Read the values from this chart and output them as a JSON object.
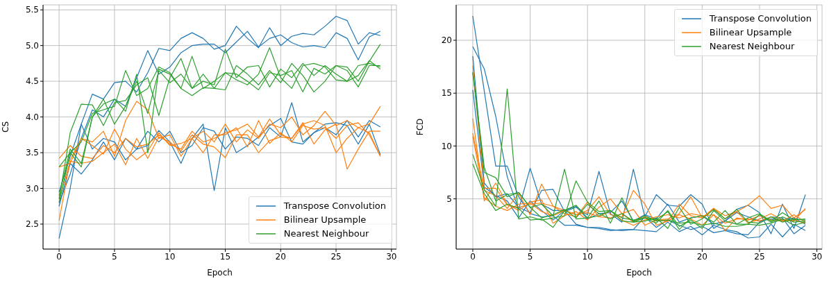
{
  "chart_data": [
    {
      "type": "line",
      "xlabel": "Epoch",
      "ylabel": "CS",
      "x": [
        0,
        1,
        2,
        3,
        4,
        5,
        6,
        7,
        8,
        9,
        10,
        11,
        12,
        13,
        14,
        15,
        16,
        17,
        18,
        19,
        20,
        21,
        22,
        23,
        24,
        25,
        26,
        27,
        28,
        29
      ],
      "xlim": [
        -1.45,
        30.45
      ],
      "xticks": [
        0,
        5,
        10,
        15,
        20,
        25,
        30
      ],
      "ylim": [
        2.15,
        5.57
      ],
      "yticks": [
        2.5,
        {
          "value": 3,
          "label": "3.0"
        },
        3.5,
        {
          "value": 4,
          "label": "4.0"
        },
        4.5,
        {
          "value": 5,
          "label": "5.0"
        },
        5.5
      ],
      "grid": true,
      "legend": "bottom right",
      "series": [
        {
          "name": "Transpose Convolution",
          "color": "#1f77b4",
          "values": [
            2.3,
            3.0,
            3.9,
            4.32,
            4.25,
            4.48,
            4.5,
            4.35,
            4.62,
            4.96,
            4.93,
            5.1,
            5.18,
            5.1,
            4.95,
            5.0,
            5.27,
            5.1,
            4.97,
            5.25,
            5.0,
            5.13,
            5.17,
            5.15,
            5.27,
            5.41,
            5.35,
            5.02,
            5.18,
            5.14
          ]
        },
        {
          "color": "#1f77b4",
          "values": [
            2.8,
            3.2,
            3.7,
            4.1,
            4.0,
            4.25,
            4.15,
            4.55,
            4.93,
            4.6,
            4.7,
            4.9,
            5.0,
            5.02,
            5.02,
            4.9,
            5.05,
            5.2,
            4.98,
            5.1,
            5.15,
            5.04,
            4.98,
            5.0,
            4.97,
            5.18,
            5.1,
            4.8,
            5.12,
            5.2
          ]
        },
        {
          "color": "#1f77b4",
          "values": [
            2.95,
            3.45,
            3.9,
            3.55,
            3.7,
            3.65,
            3.4,
            3.55,
            3.6,
            3.81,
            3.65,
            3.35,
            3.7,
            3.9,
            2.97,
            3.85,
            3.5,
            3.6,
            3.72,
            3.88,
            3.98,
            3.65,
            3.62,
            3.78,
            3.85,
            3.75,
            3.95,
            3.72,
            3.95,
            3.86
          ]
        },
        {
          "color": "#1f77b4",
          "values": [
            2.75,
            3.35,
            3.2,
            3.4,
            3.65,
            3.4,
            3.7,
            3.55,
            3.8,
            3.65,
            3.8,
            3.5,
            3.6,
            3.85,
            3.8,
            3.55,
            3.72,
            3.7,
            3.6,
            3.85,
            3.72,
            4.2,
            3.65,
            3.78,
            3.9,
            3.92,
            3.88,
            3.62,
            3.9,
            3.47
          ]
        },
        {
          "name": "Bilinear Upsample",
          "color": "#ff7f0e",
          "values": [
            2.55,
            3.4,
            3.7,
            3.65,
            3.8,
            3.45,
            3.95,
            4.22,
            4.1,
            3.7,
            3.75,
            3.45,
            3.7,
            3.8,
            3.65,
            3.9,
            3.65,
            3.82,
            3.7,
            3.9,
            3.85,
            4.0,
            3.75,
            3.88,
            4.08,
            3.88,
            3.95,
            3.85,
            3.9,
            4.15
          ]
        },
        {
          "color": "#ff7f0e",
          "values": [
            3.42,
            3.6,
            3.45,
            3.42,
            3.6,
            3.5,
            3.7,
            3.58,
            3.62,
            3.75,
            3.62,
            3.55,
            3.8,
            3.65,
            3.7,
            3.78,
            3.82,
            3.9,
            3.72,
            3.97,
            3.75,
            3.7,
            3.9,
            3.95,
            3.88,
            3.5,
            3.7,
            3.85,
            3.78,
            3.45
          ]
        },
        {
          "color": "#ff7f0e",
          "values": [
            2.85,
            3.38,
            3.35,
            3.38,
            3.5,
            3.62,
            3.33,
            3.7,
            3.42,
            3.72,
            3.65,
            3.52,
            3.75,
            3.62,
            3.58,
            3.43,
            3.75,
            3.75,
            3.5,
            3.67,
            3.72,
            3.7,
            3.92,
            3.62,
            3.82,
            3.9,
            3.27,
            3.55,
            3.8,
            3.8
          ]
        },
        {
          "color": "#ff7f0e",
          "values": [
            3.3,
            3.35,
            3.7,
            3.6,
            3.48,
            3.83,
            3.55,
            3.4,
            3.52,
            3.78,
            3.6,
            3.63,
            3.7,
            3.5,
            3.75,
            3.75,
            3.85,
            3.58,
            3.95,
            3.63,
            3.78,
            3.65,
            3.88,
            3.83,
            3.85,
            3.7,
            3.88,
            3.92,
            3.75,
            3.45
          ]
        },
        {
          "name": "Nearest Neighbour",
          "color": "#2ca02c",
          "values": [
            2.85,
            3.78,
            4.18,
            4.17,
            3.88,
            4.2,
            4.23,
            4.45,
            4.55,
            4.02,
            4.55,
            4.82,
            4.4,
            4.5,
            4.45,
            4.95,
            4.55,
            4.7,
            4.72,
            4.42,
            4.67,
            4.55,
            4.75,
            4.58,
            4.72,
            4.6,
            4.5,
            4.72,
            4.75,
            4.7
          ]
        },
        {
          "color": "#2ca02c",
          "values": [
            3.3,
            3.5,
            3.65,
            4.05,
            4.1,
            4.15,
            4.65,
            4.3,
            4.4,
            4.7,
            4.62,
            4.4,
            4.85,
            4.4,
            4.5,
            4.62,
            4.6,
            4.5,
            4.38,
            4.62,
            4.58,
            4.65,
            4.35,
            4.68,
            4.6,
            4.72,
            4.7,
            4.5,
            4.78,
            5.02
          ]
        },
        {
          "color": "#2ca02c",
          "values": [
            2.9,
            3.55,
            3.35,
            4.0,
            4.25,
            3.9,
            4.15,
            4.5,
            4.05,
            4.65,
            4.48,
            4.6,
            4.4,
            4.6,
            4.4,
            4.62,
            4.52,
            4.45,
            4.6,
            4.97,
            4.55,
            4.4,
            4.72,
            4.75,
            4.7,
            4.52,
            4.5,
            4.58,
            4.79,
            4.67
          ]
        },
        {
          "color": "#2ca02c",
          "values": [
            2.8,
            3.5,
            3.3,
            4.0,
            4.18,
            4.25,
            4.08,
            4.6,
            3.5,
            4.67,
            4.6,
            4.4,
            4.3,
            4.41,
            4.4,
            4.38,
            4.72,
            4.6,
            4.45,
            4.65,
            4.48,
            4.75,
            4.58,
            4.35,
            4.5,
            4.72,
            4.65,
            4.42,
            4.72,
            4.72
          ]
        }
      ]
    },
    {
      "type": "line",
      "xlabel": "Epoch",
      "ylabel": "FCD",
      "x": [
        0,
        1,
        2,
        3,
        4,
        5,
        6,
        7,
        8,
        9,
        10,
        11,
        12,
        13,
        14,
        15,
        16,
        17,
        18,
        19,
        20,
        21,
        22,
        23,
        24,
        25,
        26,
        27,
        28,
        29
      ],
      "xlim": [
        -1.45,
        30.45
      ],
      "xticks": [
        0,
        5,
        10,
        15,
        20,
        25,
        30
      ],
      "ylim": [
        0.25,
        23.35
      ],
      "yticks": [
        5,
        10,
        15,
        20
      ],
      "grid": true,
      "legend": "top right",
      "series": [
        {
          "name": "Transpose Convolution",
          "color": "#1f77b4",
          "values": [
            22.3,
            15.2,
            8.1,
            8.1,
            5.2,
            3.6,
            3.3,
            3.4,
            2.5,
            2.5,
            2.3,
            2.2,
            2.0,
            2.1,
            2.1,
            2.0,
            1.9,
            2.8,
            1.9,
            2.4,
            1.6,
            2.5,
            2.1,
            1.9,
            1.3,
            1.4,
            2.6,
            1.4,
            2.6,
            2.0
          ]
        },
        {
          "color": "#1f77b4",
          "values": [
            19.4,
            17.3,
            12.8,
            7.1,
            4.0,
            7.9,
            4.5,
            3.9,
            3.9,
            2.6,
            2.3,
            2.3,
            2.1,
            2.0,
            2.1,
            3.3,
            2.3,
            3.0,
            2.5,
            2.1,
            2.4,
            1.8,
            2.0,
            1.7,
            1.6,
            2.8,
            3.3,
            3.2,
            1.7,
            2.5
          ]
        },
        {
          "color": "#1f77b4",
          "values": [
            18.5,
            6.5,
            5.2,
            5.5,
            4.2,
            3.7,
            5.8,
            5.9,
            3.8,
            4.2,
            3.5,
            7.6,
            3.6,
            2.8,
            7.8,
            3.3,
            5.4,
            4.4,
            4.3,
            5.4,
            4.5,
            2.2,
            2.9,
            4.0,
            4.4,
            3.7,
            1.7,
            4.5,
            2.2,
            5.4
          ]
        },
        {
          "color": "#1f77b4",
          "values": [
            15.3,
            6.1,
            5.3,
            4.8,
            3.2,
            4.8,
            3.9,
            3.0,
            3.9,
            4.3,
            3.1,
            3.6,
            3.7,
            4.8,
            2.9,
            3.5,
            3.1,
            4.5,
            2.8,
            3.2,
            3.4,
            2.6,
            2.9,
            3.7,
            3.3,
            2.9,
            3.1,
            3.0,
            3.2,
            2.6
          ]
        },
        {
          "name": "Bilinear Upsample",
          "color": "#ff7f0e",
          "values": [
            17.6,
            6.0,
            6.0,
            4.4,
            4.2,
            4.5,
            4.6,
            4.3,
            3.9,
            3.5,
            3.9,
            5.2,
            3.5,
            3.3,
            5.8,
            4.5,
            2.5,
            2.9,
            4.5,
            3.4,
            3.2,
            4.1,
            3.4,
            3.8,
            4.4,
            5.3,
            4.1,
            4.4,
            3.2,
            4.0
          ]
        },
        {
          "color": "#ff7f0e",
          "values": [
            12.6,
            4.8,
            6.5,
            4.5,
            3.9,
            4.7,
            4.9,
            2.7,
            3.4,
            3.8,
            3.0,
            4.2,
            5.0,
            3.6,
            4.0,
            2.5,
            3.0,
            3.1,
            3.6,
            5.2,
            3.2,
            4.1,
            3.1,
            3.8,
            2.7,
            3.1,
            3.6,
            3.0,
            2.9,
            4.1
          ]
        },
        {
          "color": "#ff7f0e",
          "values": [
            11.2,
            5.8,
            5.3,
            4.1,
            5.5,
            3.5,
            6.4,
            4.3,
            3.6,
            3.3,
            4.7,
            3.3,
            3.9,
            3.0,
            2.5,
            3.0,
            3.3,
            3.5,
            3.2,
            3.6,
            3.4,
            3.5,
            2.0,
            3.2,
            3.0,
            3.4,
            3.0,
            2.9,
            3.5,
            2.8
          ]
        },
        {
          "color": "#ff7f0e",
          "values": [
            10.9,
            5.1,
            4.3,
            3.9,
            4.5,
            4.6,
            3.8,
            3.4,
            3.9,
            3.5,
            3.7,
            3.3,
            3.2,
            3.6,
            2.8,
            3.3,
            3.0,
            2.9,
            3.5,
            3.1,
            2.5,
            3.5,
            2.7,
            3.1,
            3.1,
            2.9,
            3.3,
            2.9,
            3.0,
            2.7
          ]
        },
        {
          "name": "Nearest Neighbour",
          "color": "#2ca02c",
          "values": [
            16.9,
            7.5,
            7.0,
            5.2,
            5.6,
            4.2,
            4.5,
            3.4,
            7.8,
            3.1,
            3.2,
            4.8,
            2.7,
            5.1,
            2.8,
            3.2,
            3.0,
            3.8,
            2.1,
            3.2,
            3.4,
            2.8,
            3.9,
            2.6,
            3.2,
            3.6,
            2.9,
            3.7,
            3.0,
            3.1
          ]
        },
        {
          "color": "#2ca02c",
          "values": [
            9.2,
            5.9,
            4.3,
            15.4,
            3.1,
            3.3,
            3.0,
            3.2,
            3.4,
            6.7,
            4.7,
            3.8,
            3.9,
            2.9,
            2.8,
            2.9,
            3.2,
            2.2,
            4.2,
            2.6,
            3.1,
            4.0,
            3.1,
            4.0,
            2.8,
            2.7,
            3.3,
            2.8,
            3.1,
            3.0
          ]
        },
        {
          "color": "#2ca02c",
          "values": [
            8.3,
            5.5,
            3.9,
            4.5,
            4.1,
            3.0,
            3.1,
            2.3,
            3.9,
            4.4,
            3.2,
            3.4,
            3.9,
            3.2,
            3.0,
            3.2,
            2.7,
            3.9,
            2.4,
            3.0,
            2.2,
            3.9,
            2.9,
            2.6,
            2.6,
            3.5,
            2.8,
            3.3,
            2.8,
            2.9
          ]
        },
        {
          "color": "#2ca02c",
          "values": [
            17.0,
            8.0,
            4.8,
            5.4,
            5.6,
            4.2,
            3.2,
            3.5,
            4.0,
            3.2,
            4.5,
            3.6,
            3.1,
            3.6,
            2.9,
            3.4,
            2.9,
            3.0,
            2.7,
            2.8,
            2.5,
            2.7,
            2.4,
            2.4,
            2.6,
            2.5,
            2.7,
            3.1,
            2.5,
            2.8
          ]
        }
      ]
    }
  ]
}
